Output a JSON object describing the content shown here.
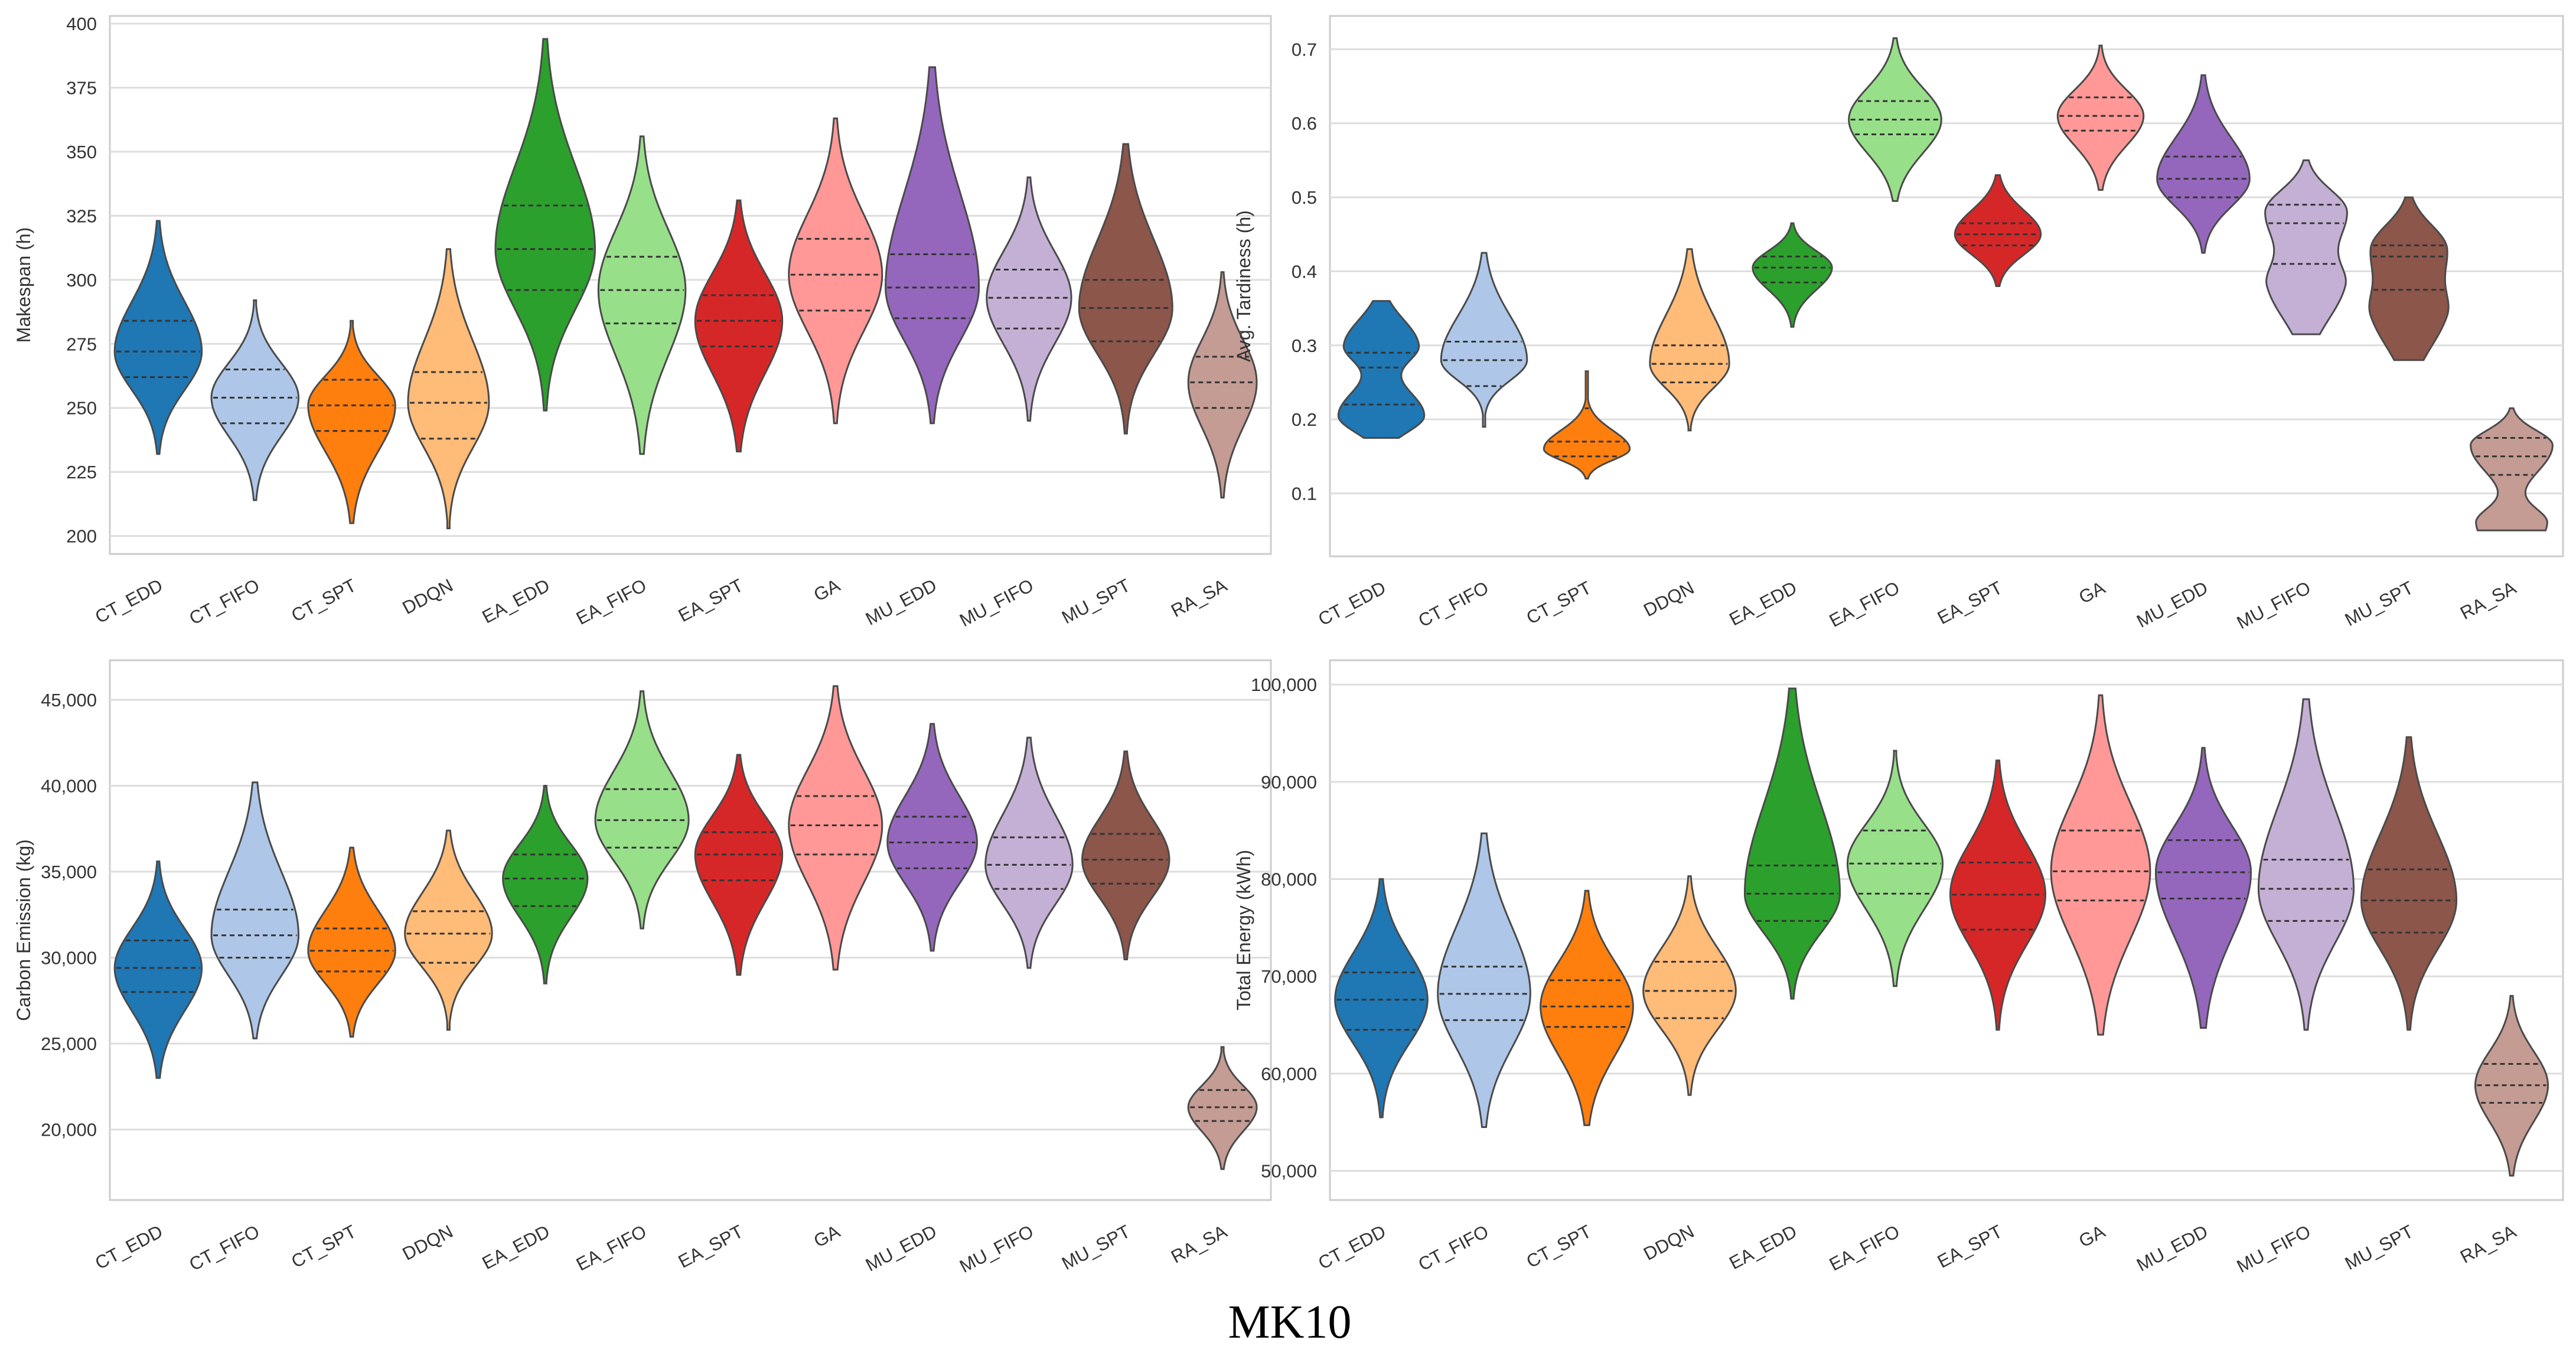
{
  "figure_caption": "MK10",
  "categories": [
    "CT_EDD",
    "CT_FIFO",
    "CT_SPT",
    "DDQN",
    "EA_EDD",
    "EA_FIFO",
    "EA_SPT",
    "GA",
    "MU_EDD",
    "MU_FIFO",
    "MU_SPT",
    "RA_SA"
  ],
  "palette": [
    "#1f77b4",
    "#aec7e8",
    "#ff7f0e",
    "#ffbb78",
    "#2ca02c",
    "#98df8a",
    "#d62728",
    "#ff9896",
    "#9467bd",
    "#c5b0d5",
    "#8c564b",
    "#c49c94"
  ],
  "chart_data": [
    {
      "type": "violin",
      "id": "makespan",
      "ylabel": "Makespan (h)",
      "ylim": [
        193,
        403
      ],
      "yticks": [
        200,
        225,
        250,
        275,
        300,
        325,
        350,
        375,
        400
      ],
      "ytick_labels": [
        "200",
        "225",
        "250",
        "275",
        "300",
        "325",
        "350",
        "375",
        "400"
      ],
      "series": [
        {
          "name": "CT_EDD",
          "min": 232,
          "max": 323,
          "q1": 262,
          "median": 272,
          "q3": 284,
          "mode": [
            272
          ],
          "bw": 0.7
        },
        {
          "name": "CT_FIFO",
          "min": 214,
          "max": 292,
          "q1": 244,
          "median": 254,
          "q3": 265,
          "mode": [
            254
          ],
          "bw": 0.7
        },
        {
          "name": "CT_SPT",
          "min": 205,
          "max": 284,
          "q1": 241,
          "median": 251,
          "q3": 261,
          "mode": [
            251
          ],
          "bw": 0.7
        },
        {
          "name": "DDQN",
          "min": 203,
          "max": 312,
          "q1": 238,
          "median": 252,
          "q3": 264,
          "mode": [
            252
          ],
          "bw": 0.65
        },
        {
          "name": "EA_EDD",
          "min": 249,
          "max": 394,
          "q1": 296,
          "median": 312,
          "q3": 329,
          "mode": [
            312
          ],
          "bw": 0.8
        },
        {
          "name": "EA_FIFO",
          "min": 232,
          "max": 356,
          "q1": 283,
          "median": 296,
          "q3": 309,
          "mode": [
            296
          ],
          "bw": 0.7
        },
        {
          "name": "EA_SPT",
          "min": 233,
          "max": 331,
          "q1": 274,
          "median": 284,
          "q3": 294,
          "mode": [
            284
          ],
          "bw": 0.7
        },
        {
          "name": "GA",
          "min": 244,
          "max": 363,
          "q1": 288,
          "median": 302,
          "q3": 316,
          "mode": [
            302
          ],
          "bw": 0.75
        },
        {
          "name": "MU_EDD",
          "min": 244,
          "max": 383,
          "q1": 285,
          "median": 297,
          "q3": 310,
          "mode": [
            297
          ],
          "bw": 0.75
        },
        {
          "name": "MU_FIFO",
          "min": 245,
          "max": 340,
          "q1": 281,
          "median": 293,
          "q3": 304,
          "mode": [
            293
          ],
          "bw": 0.68
        },
        {
          "name": "MU_SPT",
          "min": 240,
          "max": 353,
          "q1": 276,
          "median": 289,
          "q3": 300,
          "mode": [
            289
          ],
          "bw": 0.75
        },
        {
          "name": "RA_SA",
          "min": 215,
          "max": 303,
          "q1": 250,
          "median": 260,
          "q3": 270,
          "mode": [
            260
          ],
          "bw": 0.55
        }
      ]
    },
    {
      "type": "violin",
      "id": "tardiness",
      "ylabel": "Avg. Tardiness (h)",
      "ylim": [
        0.015,
        0.745
      ],
      "yticks": [
        0.1,
        0.2,
        0.3,
        0.4,
        0.5,
        0.6,
        0.7
      ],
      "ytick_labels": [
        "0.1",
        "0.2",
        "0.3",
        "0.4",
        "0.5",
        "0.6",
        "0.7"
      ],
      "series": [
        {
          "name": "CT_EDD",
          "min": 0.175,
          "max": 0.36,
          "q1": 0.22,
          "median": 0.27,
          "q3": 0.29,
          "mode": [
            0.205,
            0.3
          ],
          "bw": 0.65
        },
        {
          "name": "CT_FIFO",
          "min": 0.19,
          "max": 0.425,
          "q1": 0.245,
          "median": 0.28,
          "q3": 0.305,
          "mode": [
            0.28
          ],
          "bw": 0.65
        },
        {
          "name": "CT_SPT",
          "min": 0.12,
          "max": 0.265,
          "q1": 0.15,
          "median": 0.17,
          "q3": 0.215,
          "mode": [
            0.16
          ],
          "bw": 0.65
        },
        {
          "name": "DDQN",
          "min": 0.185,
          "max": 0.43,
          "q1": 0.25,
          "median": 0.275,
          "q3": 0.3,
          "mode": [
            0.275
          ],
          "bw": 0.6
        },
        {
          "name": "EA_EDD",
          "min": 0.325,
          "max": 0.465,
          "q1": 0.385,
          "median": 0.405,
          "q3": 0.42,
          "mode": [
            0.405
          ],
          "bw": 0.6
        },
        {
          "name": "EA_FIFO",
          "min": 0.495,
          "max": 0.715,
          "q1": 0.585,
          "median": 0.605,
          "q3": 0.63,
          "mode": [
            0.605
          ],
          "bw": 0.7
        },
        {
          "name": "EA_SPT",
          "min": 0.38,
          "max": 0.53,
          "q1": 0.435,
          "median": 0.45,
          "q3": 0.465,
          "mode": [
            0.45
          ],
          "bw": 0.65
        },
        {
          "name": "GA",
          "min": 0.51,
          "max": 0.705,
          "q1": 0.59,
          "median": 0.61,
          "q3": 0.635,
          "mode": [
            0.61
          ],
          "bw": 0.65
        },
        {
          "name": "MU_EDD",
          "min": 0.425,
          "max": 0.665,
          "q1": 0.5,
          "median": 0.525,
          "q3": 0.555,
          "mode": [
            0.525
          ],
          "bw": 0.7
        },
        {
          "name": "MU_FIFO",
          "min": 0.315,
          "max": 0.55,
          "q1": 0.41,
          "median": 0.465,
          "q3": 0.49,
          "mode": [
            0.48,
            0.38
          ],
          "bw": 0.62
        },
        {
          "name": "MU_SPT",
          "min": 0.28,
          "max": 0.5,
          "q1": 0.375,
          "median": 0.42,
          "q3": 0.435,
          "mode": [
            0.43,
            0.34
          ],
          "bw": 0.6
        },
        {
          "name": "RA_SA",
          "min": 0.05,
          "max": 0.215,
          "q1": 0.125,
          "median": 0.15,
          "q3": 0.175,
          "mode": [
            0.165,
            0.06
          ],
          "bw": 0.62
        }
      ]
    },
    {
      "type": "violin",
      "id": "carbon",
      "ylabel": "Carbon Emission (kg)",
      "ylim": [
        15900,
        47300
      ],
      "yticks": [
        20000,
        25000,
        30000,
        35000,
        40000,
        45000
      ],
      "ytick_labels": [
        "20,000",
        "25,000",
        "30,000",
        "35,000",
        "40,000",
        "45,000"
      ],
      "series": [
        {
          "name": "CT_EDD",
          "min": 23000,
          "max": 35600,
          "q1": 28000,
          "median": 29400,
          "q3": 31000,
          "mode": [
            29400
          ],
          "bw": 0.7
        },
        {
          "name": "CT_FIFO",
          "min": 25300,
          "max": 40200,
          "q1": 30000,
          "median": 31300,
          "q3": 32800,
          "mode": [
            31300
          ],
          "bw": 0.7
        },
        {
          "name": "CT_SPT",
          "min": 25400,
          "max": 36400,
          "q1": 29200,
          "median": 30400,
          "q3": 31700,
          "mode": [
            30400
          ],
          "bw": 0.7
        },
        {
          "name": "DDQN",
          "min": 25800,
          "max": 37400,
          "q1": 29700,
          "median": 31400,
          "q3": 32700,
          "mode": [
            31400
          ],
          "bw": 0.7
        },
        {
          "name": "EA_EDD",
          "min": 28500,
          "max": 40000,
          "q1": 33000,
          "median": 34600,
          "q3": 36000,
          "mode": [
            34600
          ],
          "bw": 0.68
        },
        {
          "name": "EA_FIFO",
          "min": 31700,
          "max": 45500,
          "q1": 36400,
          "median": 38000,
          "q3": 39800,
          "mode": [
            38000
          ],
          "bw": 0.75
        },
        {
          "name": "EA_SPT",
          "min": 29000,
          "max": 41800,
          "q1": 34500,
          "median": 36000,
          "q3": 37300,
          "mode": [
            36000
          ],
          "bw": 0.7
        },
        {
          "name": "GA",
          "min": 29300,
          "max": 45800,
          "q1": 36000,
          "median": 37700,
          "q3": 39400,
          "mode": [
            37700
          ],
          "bw": 0.75
        },
        {
          "name": "MU_EDD",
          "min": 30400,
          "max": 43600,
          "q1": 35200,
          "median": 36700,
          "q3": 38200,
          "mode": [
            36700
          ],
          "bw": 0.72
        },
        {
          "name": "MU_FIFO",
          "min": 29400,
          "max": 42800,
          "q1": 34000,
          "median": 35400,
          "q3": 37000,
          "mode": [
            35400
          ],
          "bw": 0.7
        },
        {
          "name": "MU_SPT",
          "min": 29900,
          "max": 42000,
          "q1": 34300,
          "median": 35700,
          "q3": 37200,
          "mode": [
            35700
          ],
          "bw": 0.7
        },
        {
          "name": "RA_SA",
          "min": 17700,
          "max": 24800,
          "q1": 20500,
          "median": 21300,
          "q3": 22300,
          "mode": [
            21300
          ],
          "bw": 0.55
        }
      ]
    },
    {
      "type": "violin",
      "id": "energy",
      "ylabel": "Total Energy (kWh)",
      "ylim": [
        47000,
        102500
      ],
      "yticks": [
        50000,
        60000,
        70000,
        80000,
        90000,
        100000
      ],
      "ytick_labels": [
        "50,000",
        "60,000",
        "70,000",
        "80,000",
        "90,000",
        "100,000"
      ],
      "series": [
        {
          "name": "CT_EDD",
          "min": 55500,
          "max": 80000,
          "q1": 64500,
          "median": 67600,
          "q3": 70400,
          "mode": [
            67600
          ],
          "bw": 0.7
        },
        {
          "name": "CT_FIFO",
          "min": 54500,
          "max": 84700,
          "q1": 65500,
          "median": 68200,
          "q3": 71000,
          "mode": [
            68200
          ],
          "bw": 0.7
        },
        {
          "name": "CT_SPT",
          "min": 54700,
          "max": 78800,
          "q1": 64800,
          "median": 66900,
          "q3": 69600,
          "mode": [
            66900
          ],
          "bw": 0.7
        },
        {
          "name": "DDQN",
          "min": 57800,
          "max": 80300,
          "q1": 65700,
          "median": 68500,
          "q3": 71500,
          "mode": [
            68500
          ],
          "bw": 0.7
        },
        {
          "name": "EA_EDD",
          "min": 67700,
          "max": 99600,
          "q1": 75700,
          "median": 78500,
          "q3": 81400,
          "mode": [
            78500
          ],
          "bw": 0.72
        },
        {
          "name": "EA_FIFO",
          "min": 69000,
          "max": 93200,
          "q1": 78500,
          "median": 81600,
          "q3": 85000,
          "mode": [
            81600
          ],
          "bw": 0.72
        },
        {
          "name": "EA_SPT",
          "min": 64500,
          "max": 92200,
          "q1": 74800,
          "median": 78400,
          "q3": 81700,
          "mode": [
            78400
          ],
          "bw": 0.72
        },
        {
          "name": "GA",
          "min": 64000,
          "max": 98900,
          "q1": 77800,
          "median": 80800,
          "q3": 85000,
          "mode": [
            80800
          ],
          "bw": 0.75
        },
        {
          "name": "MU_EDD",
          "min": 64700,
          "max": 93500,
          "q1": 78000,
          "median": 80700,
          "q3": 84000,
          "mode": [
            80700
          ],
          "bw": 0.72
        },
        {
          "name": "MU_FIFO",
          "min": 64500,
          "max": 98500,
          "q1": 75700,
          "median": 79000,
          "q3": 82000,
          "mode": [
            79000
          ],
          "bw": 0.72
        },
        {
          "name": "MU_SPT",
          "min": 64500,
          "max": 94600,
          "q1": 74500,
          "median": 77800,
          "q3": 81000,
          "mode": [
            77800
          ],
          "bw": 0.72
        },
        {
          "name": "RA_SA",
          "min": 49500,
          "max": 68000,
          "q1": 57000,
          "median": 58800,
          "q3": 61000,
          "mode": [
            58800
          ],
          "bw": 0.55
        }
      ]
    }
  ]
}
